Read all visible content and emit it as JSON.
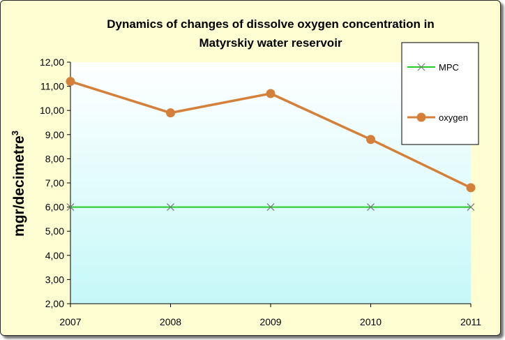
{
  "chart_data": {
    "type": "line",
    "title_lines": [
      "Dynamics of changes of dissolve oxygen concentration in",
      "Matyrskiy water reservoir"
    ],
    "xlabel": "",
    "ylabel": "mgr/decimetre",
    "ylabel_superscript": "3",
    "categories": [
      "2007",
      "2008",
      "2009",
      "2010",
      "2011"
    ],
    "ylim": [
      2,
      12
    ],
    "yticks": [
      "2,00",
      "3,00",
      "4,00",
      "5,00",
      "6,00",
      "7,00",
      "8,00",
      "9,00",
      "10,00",
      "11,00",
      "12,00"
    ],
    "grid": false,
    "legend_position": "top-right",
    "series": [
      {
        "name": "MPC",
        "values": [
          6.0,
          6.0,
          6.0,
          6.0,
          6.0
        ],
        "color": "#22cc22",
        "marker": "x"
      },
      {
        "name": "oxygen",
        "values": [
          11.2,
          9.9,
          10.7,
          8.8,
          6.8
        ],
        "color": "#d4803a",
        "marker": "circle"
      }
    ]
  },
  "colors": {
    "frame_background": "#fefed2",
    "plot_gradient_top": "#ffffff",
    "plot_gradient_bottom": "#c6f8f8"
  }
}
